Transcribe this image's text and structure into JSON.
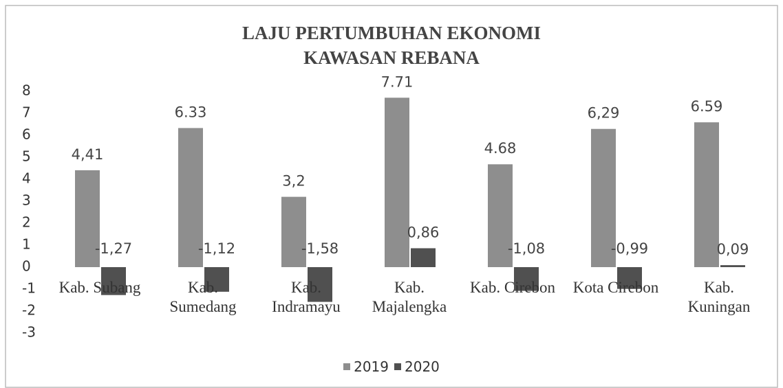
{
  "chart_data": {
    "type": "bar",
    "title": "LAJU PERTUMBUHAN EKONOMI KAWASAN REBANA",
    "categories": [
      "Kab. Subang",
      "Kab. Sumedang",
      "Kab. Indramayu",
      "Kab. Majalengka",
      "Kab. Cirebon",
      "Kota Cirebon",
      "Kab. Kuningan"
    ],
    "series": [
      {
        "name": "2019",
        "color": "#8e8e8e",
        "values": [
          4.41,
          6.33,
          3.2,
          7.71,
          4.68,
          6.29,
          6.59
        ],
        "value_labels": [
          "4,41",
          "6.33",
          "3,2",
          "7.71",
          "4.68",
          "6,29",
          "6.59"
        ]
      },
      {
        "name": "2020",
        "color": "#505050",
        "values": [
          -1.27,
          -1.12,
          -1.58,
          0.86,
          -1.08,
          -0.99,
          0.09
        ],
        "value_labels": [
          "-1,27",
          "-1,12",
          "-1,58",
          "0,86",
          "-1,08",
          "-0,99",
          "0,09"
        ]
      }
    ],
    "ylim": [
      -3,
      8
    ],
    "yticks": [
      -3,
      -2,
      -1,
      0,
      1,
      2,
      3,
      4,
      5,
      6,
      7,
      8
    ],
    "grid": false,
    "legend": "bottom"
  }
}
